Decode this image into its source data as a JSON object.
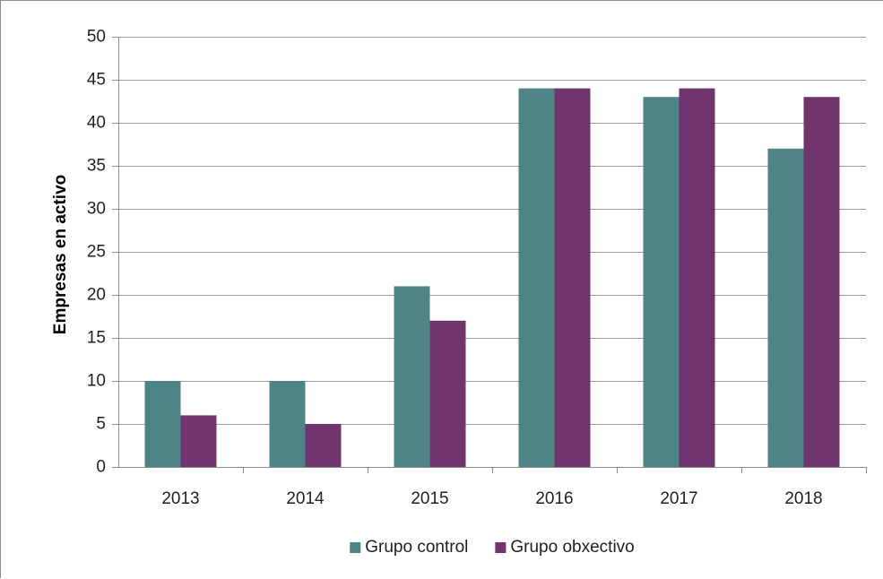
{
  "chart_data": {
    "type": "bar",
    "categories": [
      "2013",
      "2014",
      "2015",
      "2016",
      "2017",
      "2018"
    ],
    "series": [
      {
        "name": "Grupo control",
        "color": "#4e8486",
        "values": [
          10,
          10,
          21,
          44,
          43,
          37
        ]
      },
      {
        "name": "Grupo obxectivo",
        "color": "#70356f",
        "values": [
          6,
          5,
          17,
          44,
          44,
          43
        ]
      }
    ],
    "title": "",
    "xlabel": "",
    "ylabel": "Empresas en activo",
    "ylim": [
      0,
      50
    ],
    "yticks": [
      0,
      5,
      10,
      15,
      20,
      25,
      30,
      35,
      40,
      45,
      50
    ],
    "grid": true,
    "legend_position": "bottom"
  }
}
